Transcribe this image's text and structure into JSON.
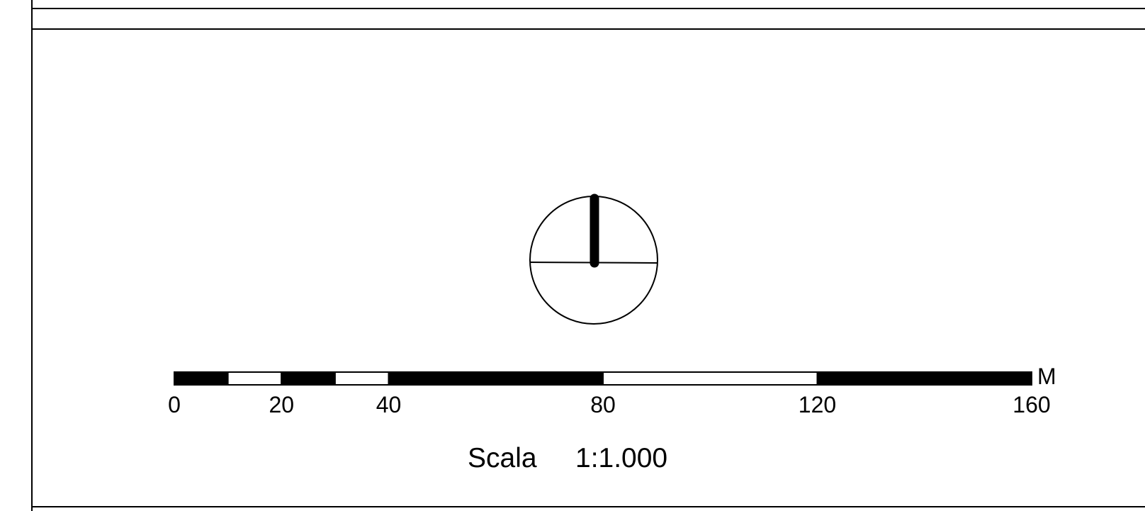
{
  "scale_bar": {
    "unit": "M",
    "tick_labels": [
      "0",
      "20",
      "40",
      "80",
      "120",
      "160"
    ],
    "tick_values": [
      0,
      20,
      40,
      80,
      120,
      160
    ],
    "segments": [
      {
        "from": 0,
        "to": 10,
        "fill": "black"
      },
      {
        "from": 10,
        "to": 20,
        "fill": "white"
      },
      {
        "from": 20,
        "to": 30,
        "fill": "black"
      },
      {
        "from": 30,
        "to": 40,
        "fill": "white"
      },
      {
        "from": 40,
        "to": 80,
        "fill": "black"
      },
      {
        "from": 80,
        "to": 120,
        "fill": "white"
      },
      {
        "from": 120,
        "to": 160,
        "fill": "black"
      }
    ]
  },
  "scale_caption": {
    "label": "Scala",
    "ratio": "1:1.000"
  },
  "north_arrow": {
    "icon": "north-arrow-icon"
  },
  "colors": {
    "ink": "#000000",
    "paper": "#ffffff"
  }
}
